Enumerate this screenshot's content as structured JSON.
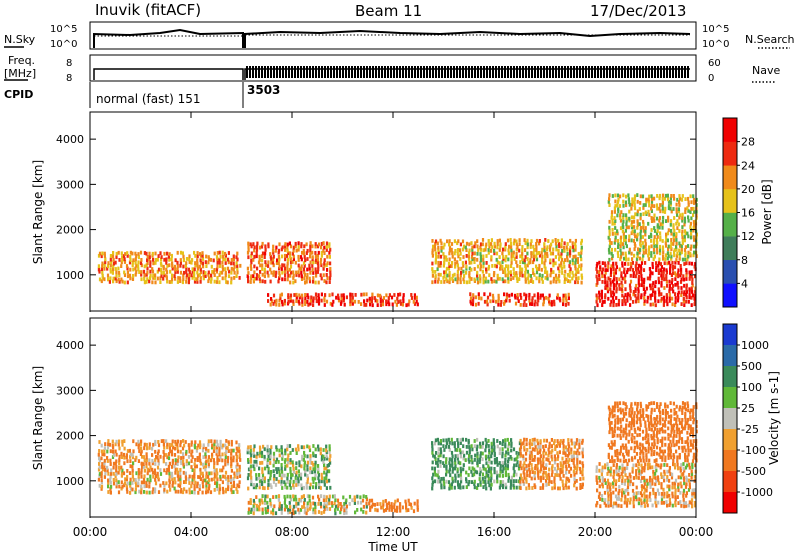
{
  "header": {
    "station": "Inuvik (fitACF)",
    "beam": "Beam 11",
    "date": "17/Dec/2013"
  },
  "top_panel": {
    "left_labels": [
      "N.Sky",
      "Freq.",
      "[MHz]",
      "CPID"
    ],
    "left_ticks": [
      "10^5",
      "10^0",
      "8",
      "8"
    ],
    "right_labels": [
      "N.Search",
      "Nave"
    ],
    "right_ticks": [
      "10^5",
      "10^0",
      "60",
      "0"
    ],
    "cpid_segments": [
      "normal (fast) 151",
      "3503"
    ]
  },
  "chart_data": [
    {
      "type": "heatmap",
      "name": "power-panel",
      "ylabel": "Slant Range [km]",
      "y_ticks": [
        "1000",
        "2000",
        "3000",
        "4000"
      ],
      "ylim": [
        200,
        4600
      ],
      "xlim": [
        "00:00",
        "24:00"
      ],
      "x_ticks": [
        "00:00",
        "04:00",
        "08:00",
        "12:00",
        "16:00",
        "20:00",
        "00:00"
      ],
      "colorbar_label": "Power [dB]",
      "colorbar_ticks": [
        "4",
        "8",
        "12",
        "16",
        "20",
        "24",
        "28"
      ],
      "colorbar_colors": [
        "#1010ff",
        "#2a4fb0",
        "#3f7d5a",
        "#55b048",
        "#e6c21a",
        "#f08a1a",
        "#ee2a10",
        "#f00000"
      ],
      "bands": [
        {
          "x0": 0.3,
          "x1": 6.0,
          "y0": 800,
          "y1": 1500,
          "value": 22
        },
        {
          "x0": 6.2,
          "x1": 9.5,
          "y0": 800,
          "y1": 1700,
          "value": 24
        },
        {
          "x0": 7.0,
          "x1": 11.0,
          "y0": 300,
          "y1": 550,
          "value": 26
        },
        {
          "x0": 11.0,
          "x1": 13.0,
          "y0": 300,
          "y1": 600,
          "value": 26
        },
        {
          "x0": 13.5,
          "x1": 19.5,
          "y0": 800,
          "y1": 1800,
          "value": 20
        },
        {
          "x0": 15.0,
          "x1": 19.0,
          "y0": 300,
          "y1": 600,
          "value": 26
        },
        {
          "x0": 20.0,
          "x1": 24.0,
          "y0": 300,
          "y1": 1300,
          "value": 28
        },
        {
          "x0": 20.5,
          "x1": 24.0,
          "y0": 1300,
          "y1": 2800,
          "value": 18
        }
      ]
    },
    {
      "type": "heatmap",
      "name": "velocity-panel",
      "ylabel": "Slant Range [km]",
      "y_ticks": [
        "1000",
        "2000",
        "3000",
        "4000"
      ],
      "ylim": [
        200,
        4600
      ],
      "xlim": [
        "00:00",
        "24:00"
      ],
      "x_ticks": [
        "00:00",
        "04:00",
        "08:00",
        "12:00",
        "16:00",
        "20:00",
        "00:00"
      ],
      "xlabel": "Time UT",
      "colorbar_label": "Velocity [m s-1]",
      "colorbar_ticks": [
        "1000",
        "500",
        "100",
        "25",
        "-25",
        "-100",
        "-500",
        "-1000"
      ],
      "colorbar_colors": [
        "#1a3ad0",
        "#2a6aa8",
        "#3a8a5a",
        "#60b838",
        "#c0c0b8",
        "#f0a030",
        "#f07820",
        "#f04010",
        "#f00000"
      ],
      "bands": [
        {
          "x0": 0.3,
          "x1": 6.0,
          "y0": 700,
          "y1": 1900,
          "value": -100
        },
        {
          "x0": 6.2,
          "x1": 9.5,
          "y0": 800,
          "y1": 1800,
          "value": 50
        },
        {
          "x0": 6.2,
          "x1": 11.0,
          "y0": 250,
          "y1": 700,
          "value": 0
        },
        {
          "x0": 11.0,
          "x1": 13.0,
          "y0": 300,
          "y1": 600,
          "value": -200
        },
        {
          "x0": 13.5,
          "x1": 17.0,
          "y0": 800,
          "y1": 1900,
          "value": 150
        },
        {
          "x0": 17.0,
          "x1": 19.5,
          "y0": 800,
          "y1": 1900,
          "value": -150
        },
        {
          "x0": 20.0,
          "x1": 24.0,
          "y0": 400,
          "y1": 1400,
          "value": -100
        },
        {
          "x0": 20.5,
          "x1": 24.0,
          "y0": 1400,
          "y1": 2700,
          "value": -300
        }
      ]
    }
  ]
}
